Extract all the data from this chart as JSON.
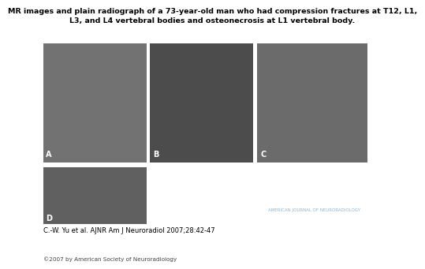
{
  "title_line1": "MR images and plain radiograph of a 73-year-old man who had compression fractures at T12, L1,",
  "title_line2": "L3, and L4 vertebral bodies and osteonecrosis at L1 vertebral body.",
  "citation": "C.-W. Yu et al. AJNR Am J Neuroradiol 2007;28:42-47",
  "copyright": "©2007 by American Society of Neuroradiology",
  "background_color": "#ffffff",
  "title_fontsize": 6.8,
  "citation_fontsize": 6.0,
  "copyright_fontsize": 5.2,
  "ainr_bg_color": "#1b4f8a",
  "ainr_text_color": "#ffffff",
  "ainr_sublabel_color": "#8ab4d4",
  "ainr_label": "AMERICAN JOURNAL OF NEURORADIOLOGY",
  "panel_labels": [
    "A",
    "B",
    "C",
    "D"
  ],
  "panel_label_fontsize": 7,
  "ainr_fontsize": 26,
  "ainr_sub_fontsize": 4.0
}
